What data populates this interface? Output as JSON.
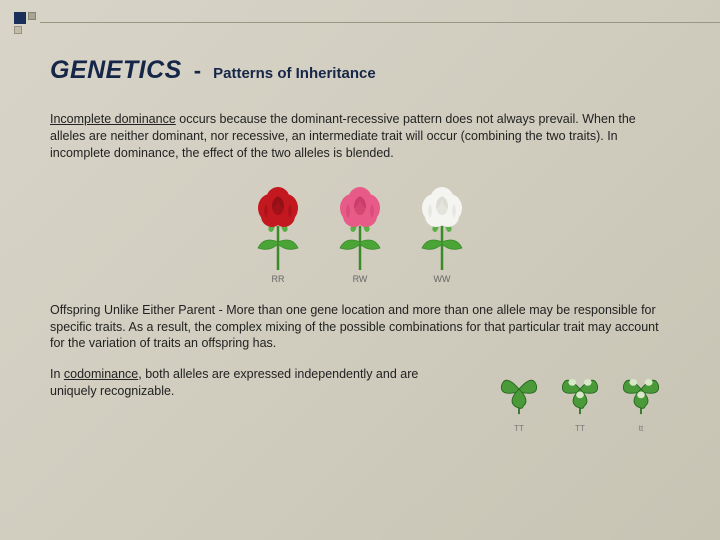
{
  "accent": {
    "color_primary": "#1a2f5a",
    "color_muted1": "#a8a494",
    "color_muted2": "#c0bca8"
  },
  "title": {
    "main": "GENETICS",
    "dash": "-",
    "sub": "Patterns of Inheritance",
    "color": "#152648"
  },
  "paragraphs": {
    "incomplete_lead": "Incomplete dominance",
    "incomplete_body": " occurs because the dominant-recessive pattern does not always prevail. When the alleles are neither dominant, nor recessive, an intermediate trait will occur (combining the two traits). In incomplete dominance, the effect of the two alleles is blended.",
    "offspring": "Offspring Unlike Either Parent - More than one gene location and more than one allele may be responsible for specific traits. As a result, the complex mixing of the possible combinations for that particular trait may account for the variation of traits an offspring has.",
    "codominance_prefix": "In ",
    "codominance_term": "codominance",
    "codominance_suffix": ", both alleles are expressed independently and are uniquely recognizable."
  },
  "roses": {
    "items": [
      {
        "label": "RR",
        "petal": "#c41820",
        "petal_dark": "#8a0f14"
      },
      {
        "label": "RW",
        "petal": "#e85a88",
        "petal_dark": "#c43a66"
      },
      {
        "label": "WW",
        "petal": "#f4f4f0",
        "petal_dark": "#d8d8d0"
      }
    ],
    "stem": "#3a8a2a",
    "leaf": "#4aa536",
    "sepal": "#5ab046"
  },
  "clovers": {
    "items": [
      {
        "label": "TT",
        "leaf": "#4a9a3a",
        "spot": "none"
      },
      {
        "label": "TT",
        "leaf": "#4a9a3a",
        "spot": "#d8e8c8"
      },
      {
        "label": "tt",
        "leaf": "#4a9a3a",
        "spot": "#d8e8c8"
      }
    ],
    "stem": "#3a7a2e"
  }
}
